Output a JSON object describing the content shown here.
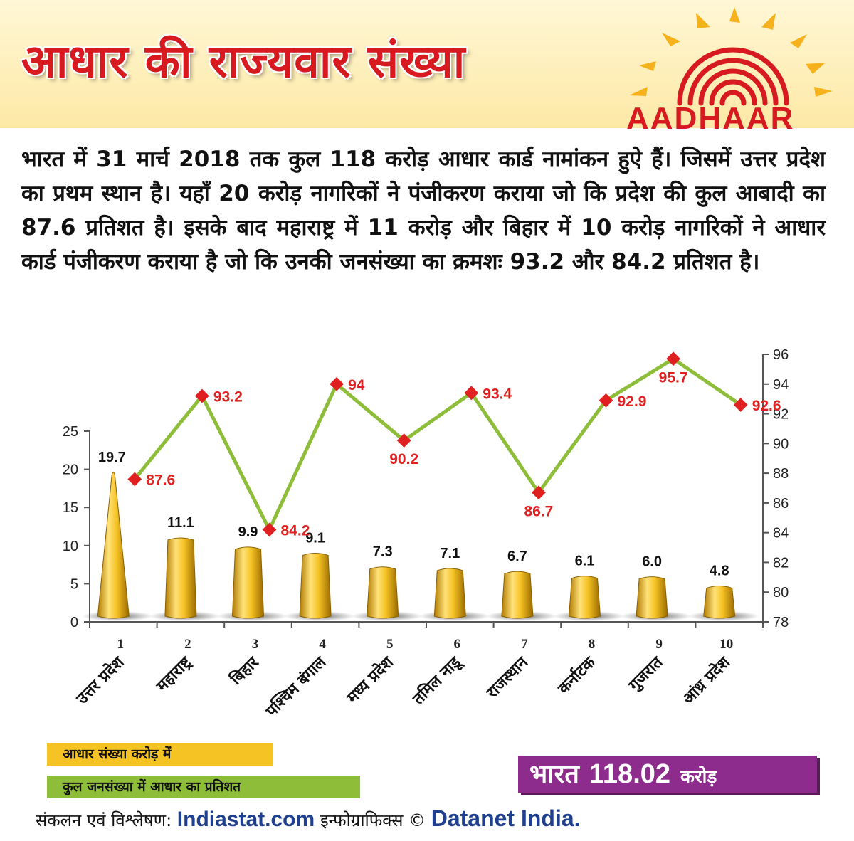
{
  "header": {
    "title": "आधार की राज्यवार संख्या",
    "logo_text": "AADHAAR"
  },
  "paragraph": "भारत में 31 मार्च 2018 तक कुल 118 करोड़ आधार कार्ड नामांकन हुऐ हैं। जिसमें उत्तर प्रदेश का प्रथम स्थान है। यहाँ 20 करोड़ नागरिकों ने पंजीकरण कराया जो कि प्रदेश की कुल आबादी का 87.6 प्रतिशत है। इसके बाद महाराष्ट्र में 11 करोड़ और बिहार में 10 करोड़ नागरिकों ने आधार कार्ड पंजीकरण कराया है जो कि उनकी जनसंख्या का क्रमशः 93.2 और 84.2 प्रतिशत है।",
  "colors": {
    "bar": "#f6c324",
    "line": "#8ebd3a",
    "marker": "#e02020",
    "pct_label": "#e02020",
    "title": "#d71920",
    "total_bg": "#8e2c8e"
  },
  "chart_data": {
    "type": "bar",
    "categories": [
      "1",
      "2",
      "3",
      "4",
      "5",
      "6",
      "7",
      "8",
      "9",
      "10"
    ],
    "state_names": [
      "उत्तर प्रदेश",
      "महाराष्ट्र",
      "बिहार",
      "पश्चिम बंगाल",
      "मध्य प्रदेश",
      "तमिल नाडू",
      "राजस्थान",
      "कर्नाटक",
      "गुजरात",
      "आंध्र प्रदेश"
    ],
    "series": [
      {
        "name": "आधार संख्या करोड़ में",
        "type": "bar",
        "axis": "left",
        "values": [
          19.7,
          11.1,
          9.9,
          9.1,
          7.3,
          7.1,
          6.7,
          6.1,
          6.0,
          4.8
        ]
      },
      {
        "name": "कुल जनसंख्या में आधार का प्रतिशत",
        "type": "line",
        "axis": "right",
        "values": [
          87.6,
          93.2,
          84.2,
          94,
          90.2,
          93.4,
          86.7,
          92.9,
          95.7,
          92.6
        ]
      }
    ],
    "bar_labels": [
      "19.7",
      "11.1",
      "9.9",
      "9.1",
      "7.3",
      "7.1",
      "6.7",
      "6.1",
      "6.0",
      "4.8"
    ],
    "line_labels": [
      "87.6",
      "93.2",
      "84.2",
      "94",
      "90.2",
      "93.4",
      "86.7",
      "92.9",
      "95.7",
      "92.6"
    ],
    "ylim_left": [
      0,
      25
    ],
    "yticks_left": [
      0,
      5,
      10,
      15,
      20,
      25
    ],
    "ylim_right": [
      78,
      96
    ],
    "yticks_right": [
      78,
      80,
      82,
      84,
      86,
      88,
      90,
      92,
      94,
      96
    ],
    "grid": false,
    "legend": "bottom-left"
  },
  "legend": {
    "bar": "आधार संख्या करोड़ में",
    "line": "कुल जनसंख्या में आधार का प्रतिशत"
  },
  "total": {
    "label": "भारत",
    "value": "118.02",
    "unit": "करोड़"
  },
  "footer": {
    "prefix": "संकलन एवं विश्लेषण:",
    "brand1": "Indiastat.com",
    "middle": "इन्फोग्राफिक्स ©",
    "brand2": "Datanet India."
  }
}
